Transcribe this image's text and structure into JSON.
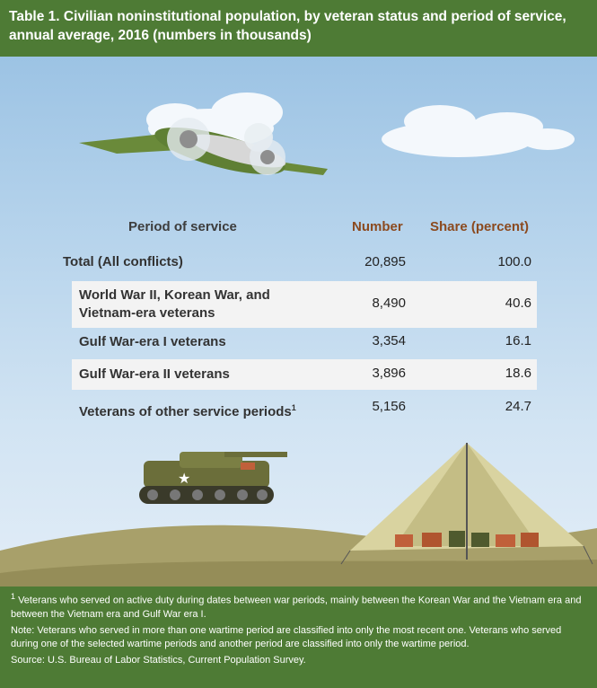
{
  "title": "Table 1. Civilian noninstitutional population, by veteran status and period of service, annual average, 2016 (numbers in thousands)",
  "chart_data": {
    "type": "table",
    "columns": [
      "Period of service",
      "Number",
      "Share (percent)"
    ],
    "total": {
      "label": "Total (All conflicts)",
      "number": "20,895",
      "share": "100.0"
    },
    "rows": [
      {
        "label_line1": "World War II, Korean War, and",
        "label_line2": "Vietnam-era veterans",
        "number": "8,490",
        "share": "40.6"
      },
      {
        "label": "Gulf War-era I veterans",
        "number": "3,354",
        "share": "16.1"
      },
      {
        "label": "Gulf War-era II veterans",
        "number": "3,896",
        "share": "18.6"
      },
      {
        "label": "Veterans of other service periods",
        "footnote_mark": "1",
        "number": "5,156",
        "share": "24.7"
      }
    ]
  },
  "footnotes": {
    "note1_mark": "1",
    "note1_text": " Veterans who served on active duty during dates between war periods, mainly between the Korean War and the Vietnam era and between the Vietnam era and Gulf War era I.",
    "note2": "Note: Veterans who served in more than one wartime period are classified into only the most recent one. Veterans who served during one of the selected wartime periods and another period are classified into only the wartime period.",
    "source": "Source: U.S. Bureau of Labor Statistics, Current Population Survey."
  },
  "colors": {
    "header_green": "#4e7b35",
    "accent_brown": "#8b4a1f"
  }
}
